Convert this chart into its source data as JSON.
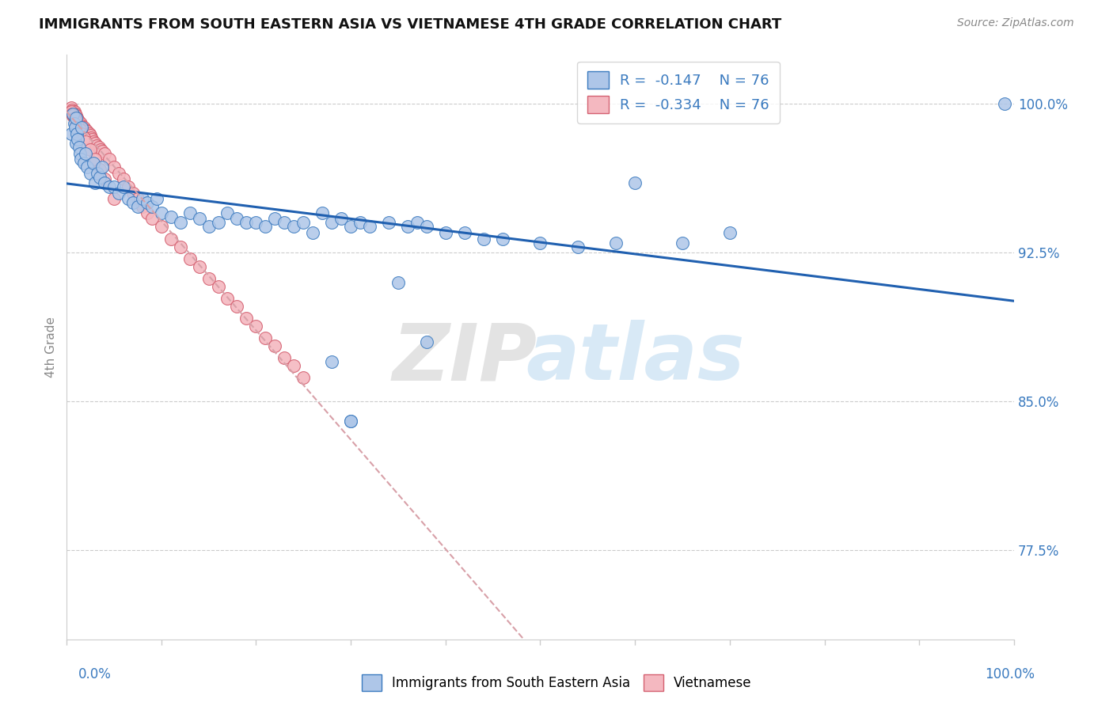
{
  "title": "IMMIGRANTS FROM SOUTH EASTERN ASIA VS VIETNAMESE 4TH GRADE CORRELATION CHART",
  "source": "Source: ZipAtlas.com",
  "ylabel": "4th Grade",
  "r_sea": -0.147,
  "r_viet": -0.334,
  "n_sea": 76,
  "n_viet": 76,
  "color_sea": "#aec6e8",
  "color_sea_border": "#3a7abf",
  "color_sea_line": "#2060b0",
  "color_viet": "#f4b8c0",
  "color_viet_border": "#d46070",
  "color_viet_trend": "#d8a0a8",
  "xlim": [
    0.0,
    1.0
  ],
  "ylim": [
    0.73,
    1.025
  ],
  "yticks": [
    0.775,
    0.85,
    0.925,
    1.0
  ],
  "ytick_labels": [
    "77.5%",
    "85.0%",
    "92.5%",
    "100.0%"
  ],
  "sea_x": [
    0.005,
    0.007,
    0.008,
    0.009,
    0.01,
    0.01,
    0.011,
    0.012,
    0.013,
    0.014,
    0.015,
    0.016,
    0.018,
    0.02,
    0.022,
    0.025,
    0.028,
    0.03,
    0.033,
    0.035,
    0.038,
    0.04,
    0.045,
    0.05,
    0.055,
    0.06,
    0.065,
    0.07,
    0.075,
    0.08,
    0.085,
    0.09,
    0.095,
    0.1,
    0.11,
    0.12,
    0.13,
    0.14,
    0.15,
    0.16,
    0.17,
    0.18,
    0.19,
    0.2,
    0.21,
    0.22,
    0.23,
    0.24,
    0.25,
    0.26,
    0.27,
    0.28,
    0.29,
    0.3,
    0.31,
    0.32,
    0.34,
    0.36,
    0.37,
    0.38,
    0.4,
    0.42,
    0.44,
    0.46,
    0.5,
    0.54,
    0.58,
    0.6,
    0.65,
    0.7,
    0.28,
    0.35,
    0.3,
    0.3,
    0.38,
    0.99
  ],
  "sea_y": [
    0.985,
    0.995,
    0.99,
    0.988,
    0.993,
    0.98,
    0.985,
    0.982,
    0.978,
    0.975,
    0.972,
    0.988,
    0.97,
    0.975,
    0.968,
    0.965,
    0.97,
    0.96,
    0.965,
    0.963,
    0.968,
    0.96,
    0.958,
    0.958,
    0.955,
    0.958,
    0.952,
    0.95,
    0.948,
    0.952,
    0.95,
    0.948,
    0.952,
    0.945,
    0.943,
    0.94,
    0.945,
    0.942,
    0.938,
    0.94,
    0.945,
    0.942,
    0.94,
    0.94,
    0.938,
    0.942,
    0.94,
    0.938,
    0.94,
    0.935,
    0.945,
    0.94,
    0.942,
    0.938,
    0.94,
    0.938,
    0.94,
    0.938,
    0.94,
    0.938,
    0.935,
    0.935,
    0.932,
    0.932,
    0.93,
    0.928,
    0.93,
    0.96,
    0.93,
    0.935,
    0.87,
    0.91,
    0.84,
    0.84,
    0.88,
    1.0
  ],
  "viet_x": [
    0.005,
    0.006,
    0.007,
    0.008,
    0.008,
    0.009,
    0.01,
    0.01,
    0.011,
    0.012,
    0.012,
    0.013,
    0.014,
    0.015,
    0.015,
    0.016,
    0.017,
    0.018,
    0.019,
    0.02,
    0.021,
    0.022,
    0.023,
    0.024,
    0.025,
    0.026,
    0.027,
    0.028,
    0.03,
    0.032,
    0.034,
    0.036,
    0.038,
    0.04,
    0.045,
    0.05,
    0.055,
    0.06,
    0.065,
    0.07,
    0.075,
    0.08,
    0.085,
    0.09,
    0.1,
    0.11,
    0.12,
    0.13,
    0.14,
    0.15,
    0.16,
    0.17,
    0.18,
    0.19,
    0.2,
    0.21,
    0.22,
    0.23,
    0.24,
    0.25,
    0.005,
    0.006,
    0.007,
    0.008,
    0.009,
    0.01,
    0.012,
    0.014,
    0.016,
    0.018,
    0.02,
    0.025,
    0.03,
    0.035,
    0.04,
    0.05
  ],
  "viet_y": [
    0.998,
    0.997,
    0.996,
    0.996,
    0.995,
    0.995,
    0.994,
    0.993,
    0.993,
    0.992,
    0.992,
    0.991,
    0.99,
    0.99,
    0.989,
    0.989,
    0.988,
    0.988,
    0.987,
    0.987,
    0.986,
    0.986,
    0.985,
    0.985,
    0.984,
    0.983,
    0.982,
    0.981,
    0.98,
    0.979,
    0.978,
    0.977,
    0.976,
    0.975,
    0.972,
    0.968,
    0.965,
    0.962,
    0.958,
    0.955,
    0.952,
    0.948,
    0.945,
    0.942,
    0.938,
    0.932,
    0.928,
    0.922,
    0.918,
    0.912,
    0.908,
    0.902,
    0.898,
    0.892,
    0.888,
    0.882,
    0.878,
    0.872,
    0.868,
    0.862,
    0.996,
    0.995,
    0.994,
    0.993,
    0.992,
    0.991,
    0.989,
    0.987,
    0.985,
    0.983,
    0.981,
    0.977,
    0.972,
    0.967,
    0.962,
    0.952
  ]
}
